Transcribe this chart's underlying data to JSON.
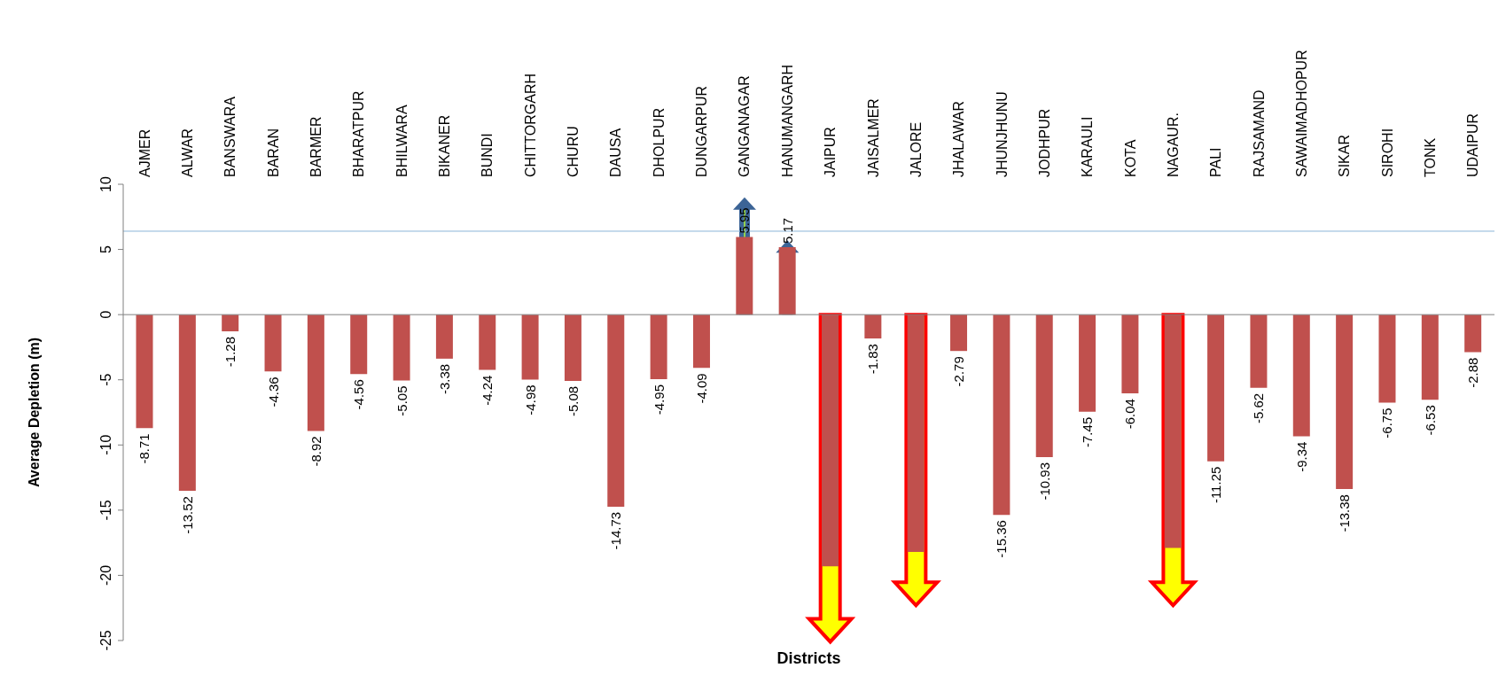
{
  "chart_data": {
    "type": "bar",
    "xlabel": "Districts",
    "ylabel": "Average Depletion (m)",
    "categories": [
      "AJMER",
      "ALWAR",
      "BANSWARA",
      "BARAN",
      "BARMER",
      "BHARATPUR",
      "BHILWARA",
      "BIKANER",
      "BUNDI",
      "CHITTORGARH",
      "CHURU",
      "DAUSA",
      "DHOLPUR",
      "DUNGARPUR",
      "GANGANAGAR",
      "HANUMANGARH",
      "JAIPUR",
      "JAISALMER",
      "JALORE",
      "JHALAWAR",
      "JHUNJHUNU",
      "JODHPUR",
      "KARAULI",
      "KOTA",
      "NAGAUR.",
      "PALI",
      "RAJSAMAND",
      "SAWAIMADHOPUR",
      "SIKAR",
      "SIROHI",
      "TONK",
      "UDAIPUR"
    ],
    "values": [
      -8.71,
      -13.52,
      -1.28,
      -4.36,
      -8.92,
      -4.56,
      -5.05,
      -3.38,
      -4.24,
      -4.98,
      -5.08,
      -14.73,
      -4.95,
      -4.09,
      5.95,
      5.17,
      -19.3,
      -1.83,
      -18.2,
      -2.79,
      -15.36,
      -10.93,
      -7.45,
      -6.04,
      -17.9,
      -11.25,
      -5.62,
      -9.34,
      -13.38,
      -6.75,
      -6.53,
      -2.88
    ],
    "value_labels": [
      "-8.71",
      "-13.52",
      "-1.28",
      "-4.36",
      "-8.92",
      "-4.56",
      "-5.05",
      "-3.38",
      "-4.24",
      "-4.98",
      "-5.08",
      "-14.73",
      "-4.95",
      "-4.09",
      "5.95",
      "5.17",
      null,
      "-1.83",
      null,
      "-2.79",
      "-15.36",
      "-10.93",
      "-7.45",
      "-6.04",
      null,
      "-11.25",
      "-5.62",
      "-9.34",
      "-13.38",
      "-6.75",
      "-6.53",
      "-2.88"
    ],
    "color": "#c0504d",
    "ylim": [
      -25,
      10
    ],
    "yticks": [
      -25,
      -20,
      -15,
      -10,
      -5,
      0,
      5,
      10
    ],
    "ref_lines": [
      {
        "axis": "y",
        "value": 6.4,
        "color": "#8ab4d8"
      }
    ]
  }
}
